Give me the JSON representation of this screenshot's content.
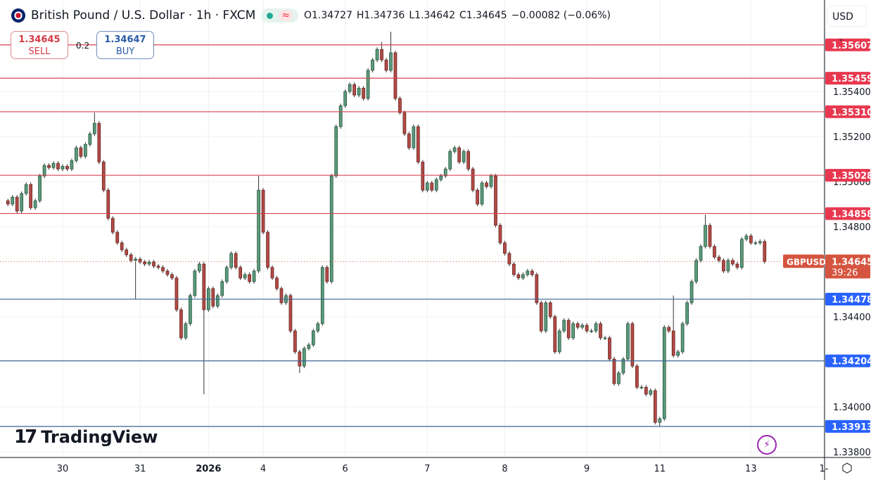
{
  "header": {
    "title": "British Pound / U.S. Dollar · 1h · FXCM",
    "ohlc": {
      "o": "O1.34727",
      "h": "H1.34736",
      "l": "L1.34642",
      "c": "C1.34645",
      "change": "−0.00082 (−0.06%)"
    },
    "status_icon": "market-open-dot",
    "wave_icon": "≈"
  },
  "trade": {
    "sell_price": "1.34645",
    "sell_label": "SELL",
    "spread": "0.2",
    "buy_price": "1.34647",
    "buy_label": "BUY"
  },
  "currency": "USD",
  "branding": "TradingView",
  "colors": {
    "up": "#5a9a7a",
    "down": "#b34a45",
    "resistance": "#d8434f",
    "support": "#3b6391",
    "resistance_label": "#e8384f",
    "support_label": "#2962ff",
    "last_price": "#d5543f"
  },
  "chart_data": {
    "type": "candlestick",
    "symbol": "GBPUSD",
    "last_price": "1.34645",
    "countdown": "39:26",
    "ylim": [
      1.3375,
      1.3582
    ],
    "y_ticks": [
      "1.35400",
      "1.35200",
      "1.35000",
      "1.34800",
      "1.34400",
      "1.34000",
      "1.33800"
    ],
    "x_labels": [
      {
        "label": "30",
        "index": 12
      },
      {
        "label": "31",
        "index": 29
      },
      {
        "label": "2026",
        "index": 44,
        "bold": true
      },
      {
        "label": "4",
        "index": 56
      },
      {
        "label": "6",
        "index": 74
      },
      {
        "label": "7",
        "index": 92
      },
      {
        "label": "8",
        "index": 109
      },
      {
        "label": "9",
        "index": 127
      },
      {
        "label": "11",
        "index": 143
      },
      {
        "label": "13",
        "index": 163
      },
      {
        "label": "1-",
        "index": 179
      }
    ],
    "resistance_levels": [
      "1.35607",
      "1.35459",
      "1.35310",
      "1.35028",
      "1.34858"
    ],
    "support_levels": [
      "1.34478",
      "1.34204",
      "1.33913"
    ],
    "first_open": 1.34915,
    "closes": [
      1.349,
      1.34931,
      1.34869,
      1.34947,
      1.34987,
      1.34884,
      1.34915,
      1.35025,
      1.35072,
      1.35062,
      1.35081,
      1.35056,
      1.35068,
      1.35056,
      1.35093,
      1.3515,
      1.35112,
      1.35165,
      1.35212,
      1.35259,
      1.35087,
      1.34962,
      1.34837,
      1.34775,
      1.34728,
      1.34697,
      1.34675,
      1.3465,
      1.34656,
      1.34643,
      1.34634,
      1.34643,
      1.34625,
      1.34619,
      1.34603,
      1.34587,
      1.34572,
      1.34431,
      1.34306,
      1.34369,
      1.34494,
      1.34603,
      1.34634,
      1.34431,
      1.34525,
      1.34447,
      1.34494,
      1.34556,
      1.34619,
      1.34681,
      1.34619,
      1.34572,
      1.34587,
      1.34556,
      1.34603,
      1.34962,
      1.34775,
      1.34619,
      1.34572,
      1.34525,
      1.34462,
      1.34494,
      1.34337,
      1.34244,
      1.34181,
      1.34259,
      1.34275,
      1.34337,
      1.34369,
      1.34619,
      1.34556,
      1.35025,
      1.35244,
      1.35337,
      1.354,
      1.35431,
      1.35384,
      1.35415,
      1.35369,
      1.35494,
      1.3554,
      1.35587,
      1.3554,
      1.35494,
      1.35572,
      1.35369,
      1.35306,
      1.35212,
      1.3515,
      1.35244,
      1.35087,
      1.34962,
      1.34994,
      1.34962,
      1.35009,
      1.35025,
      1.35056,
      1.35134,
      1.3515,
      1.35087,
      1.35134,
      1.35056,
      1.34962,
      1.349,
      1.34994,
      1.34978,
      1.35025,
      1.34806,
      1.34728,
      1.34681,
      1.34634,
      1.34587,
      1.34572,
      1.34587,
      1.34603,
      1.34587,
      1.34462,
      1.34337,
      1.34462,
      1.344,
      1.34244,
      1.34337,
      1.34384,
      1.34306,
      1.34369,
      1.34353,
      1.34362,
      1.34337,
      1.34337,
      1.34369,
      1.34306,
      1.34306,
      1.34212,
      1.34103,
      1.3415,
      1.34212,
      1.34369,
      1.34181,
      1.34087,
      1.34087,
      1.34056,
      1.34072,
      1.33931,
      1.33947,
      1.34353,
      1.34337,
      1.34228,
      1.34244,
      1.34369,
      1.34462,
      1.34556,
      1.3465,
      1.34712,
      1.34806,
      1.34712,
      1.34665,
      1.3465,
      1.34603,
      1.3465,
      1.34634,
      1.34619,
      1.34744,
      1.34759,
      1.34728,
      1.34728,
      1.34734,
      1.34645
    ],
    "notable_extremes": [
      {
        "index": 19,
        "high": 1.35306
      },
      {
        "index": 28,
        "low": 1.34478
      },
      {
        "index": 43,
        "low": 1.34056
      },
      {
        "index": 55,
        "high": 1.35025
      },
      {
        "index": 64,
        "low": 1.3415
      },
      {
        "index": 84,
        "high": 1.35665
      },
      {
        "index": 82,
        "high": 1.3562
      },
      {
        "index": 143,
        "low": 1.33915
      },
      {
        "index": 146,
        "high": 1.34494
      },
      {
        "index": 153,
        "high": 1.34853
      }
    ]
  }
}
